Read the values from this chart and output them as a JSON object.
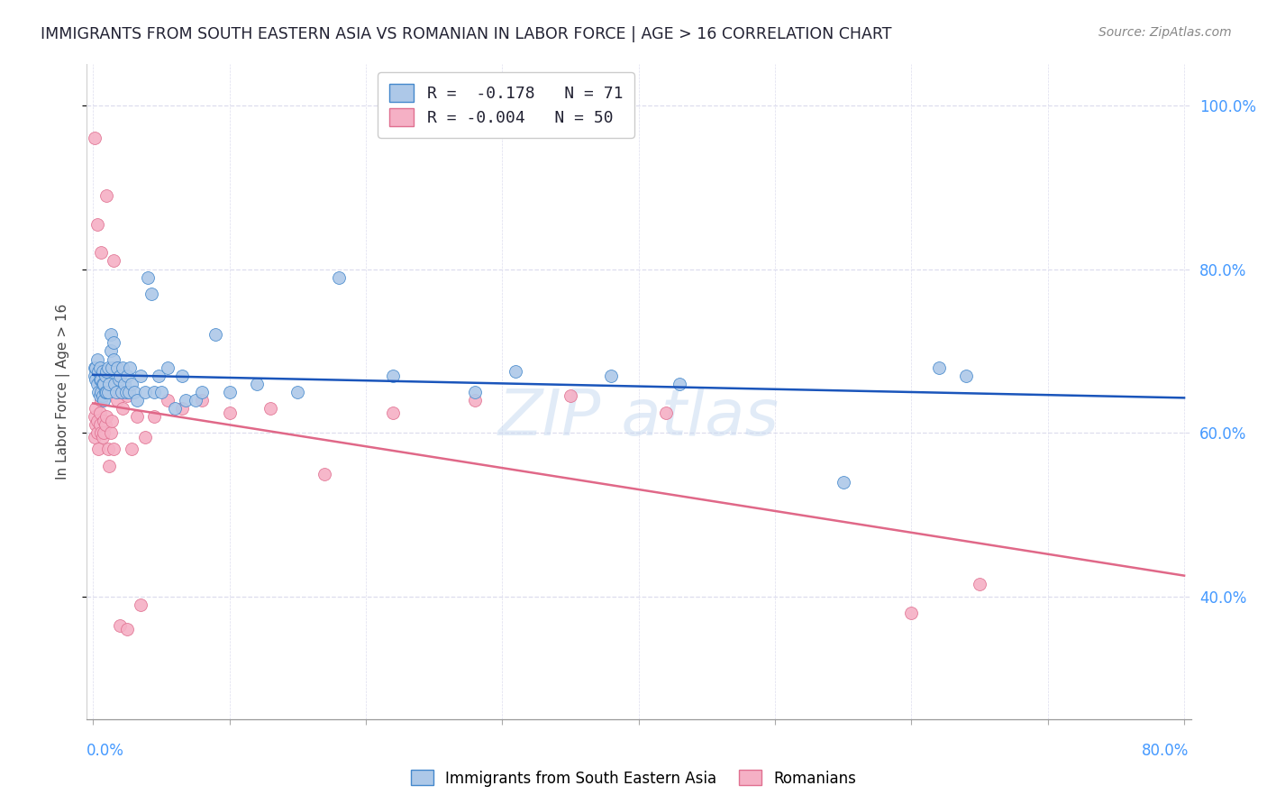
{
  "title": "IMMIGRANTS FROM SOUTH EASTERN ASIA VS ROMANIAN IN LABOR FORCE | AGE > 16 CORRELATION CHART",
  "source": "Source: ZipAtlas.com",
  "ylabel": "In Labor Force | Age > 16",
  "legend_blue_R": "-0.178",
  "legend_blue_N": "71",
  "legend_pink_R": "-0.004",
  "legend_pink_N": "50",
  "blue_face_color": "#adc8e8",
  "pink_face_color": "#f5b0c5",
  "blue_edge_color": "#4488cc",
  "pink_edge_color": "#e07090",
  "blue_line_color": "#1a55bb",
  "pink_line_color": "#e06888",
  "right_axis_color": "#4499ff",
  "title_color": "#222233",
  "grid_color": "#ddddee",
  "blue_scatter_x": [
    0.001,
    0.001,
    0.002,
    0.002,
    0.003,
    0.003,
    0.004,
    0.004,
    0.005,
    0.005,
    0.005,
    0.006,
    0.006,
    0.007,
    0.007,
    0.007,
    0.008,
    0.008,
    0.009,
    0.009,
    0.01,
    0.01,
    0.011,
    0.011,
    0.012,
    0.013,
    0.013,
    0.014,
    0.015,
    0.015,
    0.016,
    0.017,
    0.018,
    0.019,
    0.02,
    0.021,
    0.022,
    0.023,
    0.024,
    0.025,
    0.026,
    0.027,
    0.028,
    0.03,
    0.032,
    0.035,
    0.038,
    0.04,
    0.043,
    0.045,
    0.048,
    0.05,
    0.055,
    0.06,
    0.065,
    0.068,
    0.075,
    0.08,
    0.09,
    0.1,
    0.12,
    0.15,
    0.18,
    0.22,
    0.28,
    0.31,
    0.38,
    0.43,
    0.55,
    0.62,
    0.64
  ],
  "blue_scatter_y": [
    0.68,
    0.67,
    0.665,
    0.68,
    0.66,
    0.69,
    0.65,
    0.675,
    0.645,
    0.665,
    0.68,
    0.65,
    0.665,
    0.645,
    0.66,
    0.675,
    0.64,
    0.66,
    0.65,
    0.67,
    0.65,
    0.675,
    0.65,
    0.68,
    0.66,
    0.72,
    0.7,
    0.68,
    0.71,
    0.69,
    0.66,
    0.65,
    0.68,
    0.665,
    0.67,
    0.65,
    0.68,
    0.66,
    0.65,
    0.67,
    0.65,
    0.68,
    0.66,
    0.65,
    0.64,
    0.67,
    0.65,
    0.79,
    0.77,
    0.65,
    0.67,
    0.65,
    0.68,
    0.63,
    0.67,
    0.64,
    0.64,
    0.65,
    0.72,
    0.65,
    0.66,
    0.65,
    0.79,
    0.67,
    0.65,
    0.675,
    0.67,
    0.66,
    0.54,
    0.68,
    0.67
  ],
  "pink_scatter_x": [
    0.001,
    0.001,
    0.002,
    0.002,
    0.003,
    0.003,
    0.004,
    0.005,
    0.005,
    0.006,
    0.006,
    0.007,
    0.008,
    0.008,
    0.009,
    0.01,
    0.011,
    0.012,
    0.013,
    0.014,
    0.015,
    0.016,
    0.018,
    0.02,
    0.022,
    0.025,
    0.028,
    0.032,
    0.038,
    0.045,
    0.055,
    0.065,
    0.08,
    0.1,
    0.13,
    0.17,
    0.22,
    0.28,
    0.35,
    0.42,
    0.001,
    0.003,
    0.006,
    0.01,
    0.015,
    0.02,
    0.025,
    0.035,
    0.6,
    0.65
  ],
  "pink_scatter_y": [
    0.62,
    0.595,
    0.61,
    0.63,
    0.6,
    0.615,
    0.58,
    0.61,
    0.625,
    0.6,
    0.64,
    0.595,
    0.615,
    0.6,
    0.61,
    0.62,
    0.58,
    0.56,
    0.6,
    0.615,
    0.58,
    0.68,
    0.64,
    0.65,
    0.63,
    0.645,
    0.58,
    0.62,
    0.595,
    0.62,
    0.64,
    0.63,
    0.64,
    0.625,
    0.63,
    0.55,
    0.625,
    0.64,
    0.645,
    0.625,
    0.96,
    0.855,
    0.82,
    0.89,
    0.81,
    0.365,
    0.36,
    0.39,
    0.38,
    0.415
  ],
  "xlim": [
    -0.005,
    0.805
  ],
  "ylim": [
    0.25,
    1.05
  ],
  "yticks": [
    0.4,
    0.6,
    0.8,
    1.0
  ],
  "ytick_labels": [
    "40.0%",
    "60.0%",
    "80.0%",
    "100.0%"
  ],
  "xticks": [
    0.0,
    0.1,
    0.2,
    0.3,
    0.4,
    0.5,
    0.6,
    0.7,
    0.8
  ]
}
